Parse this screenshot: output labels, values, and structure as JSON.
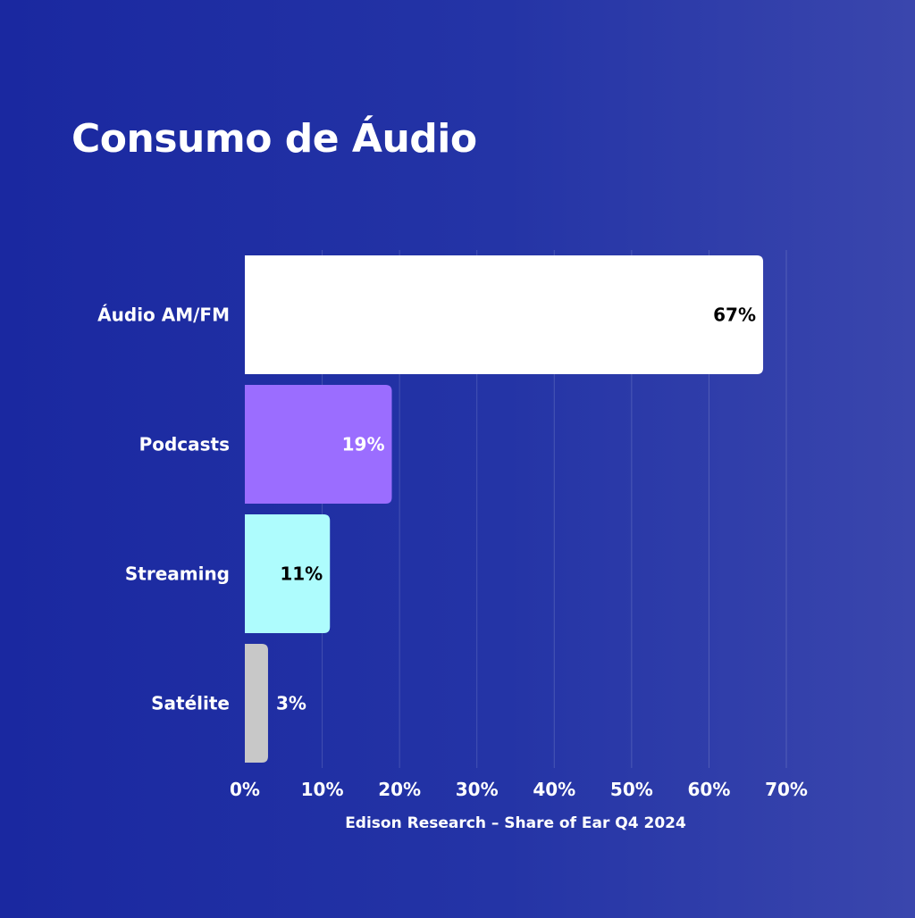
{
  "chart_data": {
    "type": "bar",
    "orientation": "horizontal",
    "title": "Consumo de Áudio",
    "xlabel": "Edison Research – Share of Ear Q4 2024",
    "ylabel": "",
    "categories": [
      "Áudio AM/FM",
      "Podcasts",
      "Streaming",
      "Satélite"
    ],
    "values": [
      67,
      19,
      11,
      3
    ],
    "value_labels": [
      "67%",
      "19%",
      "11%",
      "3%"
    ],
    "bar_colors": [
      "#ffffff",
      "#9b6dff",
      "#aefcfd",
      "#c8c8c8"
    ],
    "value_label_colors": [
      "#000000",
      "#ffffff",
      "#000000",
      "#ffffff"
    ],
    "value_label_placement": [
      "inside",
      "inside",
      "inside",
      "outside"
    ],
    "xlim": [
      0,
      70
    ],
    "x_ticks": [
      0,
      10,
      20,
      30,
      40,
      50,
      60,
      70
    ],
    "x_tick_labels": [
      "0%",
      "10%",
      "20%",
      "30%",
      "40%",
      "50%",
      "60%",
      "70%"
    ],
    "grid": true,
    "background_color": "#1f2ea3"
  }
}
